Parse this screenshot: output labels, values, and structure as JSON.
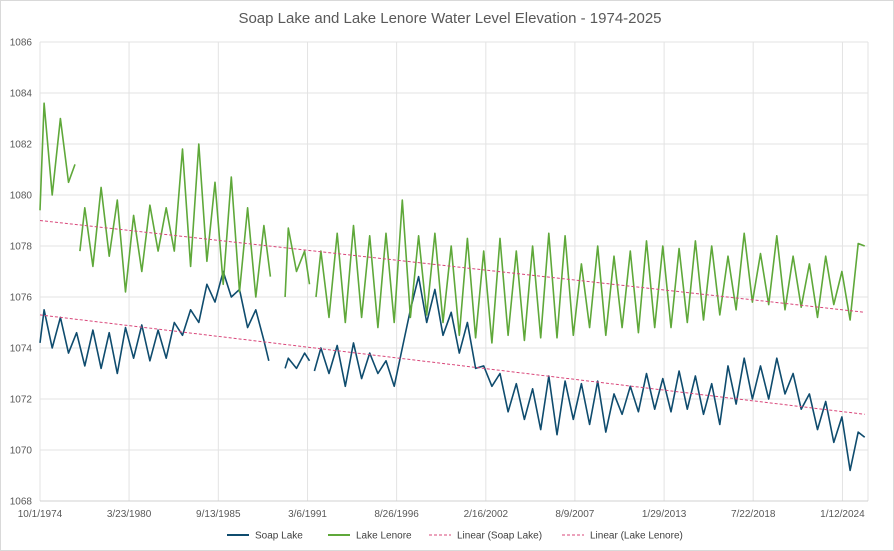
{
  "chart_data": {
    "type": "line",
    "title": "Soap Lake and Lake Lenore Water Level Elevation - 1974-2025",
    "xlabel": "",
    "ylabel": "",
    "ylim": [
      1068,
      1086
    ],
    "y_ticks": [
      "1068",
      "1070",
      "1072",
      "1074",
      "1076",
      "1078",
      "1080",
      "1082",
      "1084",
      "1086"
    ],
    "xlim": [
      1974.75,
      2025.6
    ],
    "x_ticks": [
      {
        "label": "10/1/1974",
        "x": 1974.75
      },
      {
        "label": "3/23/1980",
        "x": 1980.22
      },
      {
        "label": "9/13/1985",
        "x": 1985.7
      },
      {
        "label": "3/6/1991",
        "x": 1991.18
      },
      {
        "label": "8/26/1996",
        "x": 1996.65
      },
      {
        "label": "2/16/2002",
        "x": 2002.13
      },
      {
        "label": "8/9/2007",
        "x": 2007.6
      },
      {
        "label": "1/29/2013",
        "x": 2013.08
      },
      {
        "label": "7/22/2018",
        "x": 2018.55
      },
      {
        "label": "1/12/2024",
        "x": 2024.03
      }
    ],
    "grid": "vertical and horizontal",
    "legend_position": "bottom",
    "series": [
      {
        "name": "Soap Lake",
        "color": "#0f4c6e",
        "style": "solid",
        "x": [
          1974.75,
          1975.0,
          1975.5,
          1976.0,
          1976.5,
          1977.0,
          1977.5,
          1978.0,
          1978.5,
          1979.0,
          1979.5,
          1980.0,
          1980.5,
          1981.0,
          1981.5,
          1982.0,
          1982.5,
          1983.0,
          1983.5,
          1984.0,
          1984.5,
          1985.0,
          1985.5,
          1986.0,
          1986.5,
          1987.0,
          1987.5,
          1988.0,
          1988.5,
          1988.8,
          null,
          1989.8,
          1990.0,
          1990.5,
          1991.0,
          1991.3,
          null,
          1991.6,
          1992.0,
          1992.5,
          1993.0,
          1993.5,
          1994.0,
          1994.5,
          1995.0,
          1995.5,
          1996.0,
          1996.5,
          1997.0,
          1997.5,
          1998.0,
          1998.5,
          1999.0,
          1999.5,
          2000.0,
          2000.5,
          2001.0,
          2001.5,
          2002.0,
          2002.5,
          2003.0,
          2003.5,
          2004.0,
          2004.5,
          2005.0,
          2005.5,
          2006.0,
          2006.5,
          2007.0,
          2007.5,
          2008.0,
          2008.5,
          2009.0,
          2009.5,
          2010.0,
          2010.5,
          2011.0,
          2011.5,
          2012.0,
          2012.5,
          2013.0,
          2013.5,
          2014.0,
          2014.5,
          2015.0,
          2015.5,
          2016.0,
          2016.5,
          2017.0,
          2017.5,
          2018.0,
          2018.5,
          2019.0,
          2019.5,
          2020.0,
          2020.5,
          2021.0,
          2021.5,
          2022.0,
          2022.5,
          2023.0,
          2023.5,
          2024.0,
          2024.5,
          2025.0,
          2025.4
        ],
        "values": [
          1074.2,
          1075.5,
          1074.0,
          1075.2,
          1073.8,
          1074.6,
          1073.3,
          1074.7,
          1073.2,
          1074.6,
          1073.0,
          1074.8,
          1073.6,
          1074.9,
          1073.5,
          1074.7,
          1073.6,
          1075.0,
          1074.5,
          1075.5,
          1075.0,
          1076.5,
          1075.8,
          1077.0,
          1076.0,
          1076.3,
          1074.8,
          1075.5,
          1074.3,
          1073.5,
          null,
          1073.2,
          1073.6,
          1073.2,
          1073.8,
          1073.5,
          null,
          1073.1,
          1074.0,
          1073.0,
          1074.1,
          1072.5,
          1074.2,
          1072.8,
          1073.8,
          1073.0,
          1073.5,
          1072.5,
          1074.0,
          1075.5,
          1076.8,
          1075.0,
          1076.3,
          1074.5,
          1075.4,
          1073.8,
          1075.0,
          1073.2,
          1073.3,
          1072.5,
          1073.0,
          1071.5,
          1072.6,
          1071.2,
          1072.4,
          1070.8,
          1072.9,
          1070.6,
          1072.7,
          1071.2,
          1072.6,
          1071.0,
          1072.7,
          1070.7,
          1072.2,
          1071.4,
          1072.5,
          1071.5,
          1073.0,
          1071.6,
          1072.8,
          1071.5,
          1073.1,
          1071.6,
          1072.9,
          1071.4,
          1072.6,
          1071.0,
          1073.3,
          1071.8,
          1073.6,
          1072.0,
          1073.3,
          1072.0,
          1073.6,
          1072.2,
          1073.0,
          1071.6,
          1072.2,
          1070.8,
          1071.9,
          1070.3,
          1071.3,
          1069.2,
          1070.7,
          1070.5
        ]
      },
      {
        "name": "Lake Lenore",
        "color": "#5fa83a",
        "style": "solid",
        "x": [
          1974.75,
          1975.0,
          1975.5,
          1976.0,
          1976.5,
          1976.9,
          null,
          1977.2,
          1977.5,
          1978.0,
          1978.5,
          1979.0,
          1979.5,
          1980.0,
          1980.5,
          1981.0,
          1981.5,
          1982.0,
          1982.5,
          1983.0,
          1983.5,
          1984.0,
          1984.5,
          1985.0,
          1985.5,
          1986.0,
          1986.5,
          1987.0,
          1987.5,
          1988.0,
          1988.5,
          1988.9,
          null,
          1989.8,
          1990.0,
          1990.5,
          1991.0,
          1991.3,
          null,
          1991.7,
          1992.0,
          1992.5,
          1993.0,
          1993.5,
          1994.0,
          1994.5,
          1995.0,
          1995.5,
          1996.0,
          1996.5,
          1997.0,
          1997.5,
          1998.0,
          1998.5,
          1999.0,
          1999.5,
          2000.0,
          2000.5,
          2001.0,
          2001.5,
          2002.0,
          2002.5,
          2003.0,
          2003.5,
          2004.0,
          2004.5,
          2005.0,
          2005.5,
          2006.0,
          2006.5,
          2007.0,
          2007.5,
          2008.0,
          2008.5,
          2009.0,
          2009.5,
          2010.0,
          2010.5,
          2011.0,
          2011.5,
          2012.0,
          2012.5,
          2013.0,
          2013.5,
          2014.0,
          2014.5,
          2015.0,
          2015.5,
          2016.0,
          2016.5,
          2017.0,
          2017.5,
          2018.0,
          2018.5,
          2019.0,
          2019.5,
          2020.0,
          2020.5,
          2021.0,
          2021.5,
          2022.0,
          2022.5,
          2023.0,
          2023.5,
          2024.0,
          2024.5,
          2025.0,
          2025.4
        ],
        "values": [
          1079.4,
          1083.6,
          1080.0,
          1083.0,
          1080.5,
          1081.2,
          null,
          1077.8,
          1079.5,
          1077.2,
          1080.3,
          1077.6,
          1079.8,
          1076.2,
          1079.2,
          1077.0,
          1079.6,
          1077.8,
          1079.5,
          1077.8,
          1081.8,
          1077.2,
          1082.0,
          1077.4,
          1080.5,
          1076.5,
          1080.7,
          1076.2,
          1079.5,
          1076.0,
          1078.8,
          1076.8,
          null,
          1076.0,
          1078.7,
          1077.0,
          1077.8,
          1076.5,
          null,
          1076.0,
          1077.8,
          1075.2,
          1078.5,
          1075.0,
          1078.8,
          1075.2,
          1078.4,
          1074.8,
          1078.5,
          1075.0,
          1079.8,
          1075.2,
          1078.4,
          1075.3,
          1078.5,
          1075.0,
          1078.0,
          1074.5,
          1078.3,
          1074.4,
          1077.8,
          1074.2,
          1078.3,
          1074.5,
          1077.8,
          1074.3,
          1078.0,
          1074.4,
          1078.5,
          1074.4,
          1078.4,
          1074.5,
          1077.3,
          1074.8,
          1078.0,
          1074.5,
          1077.6,
          1074.8,
          1077.8,
          1074.6,
          1078.2,
          1074.8,
          1078.0,
          1074.8,
          1077.9,
          1075.0,
          1078.2,
          1075.1,
          1078.0,
          1075.3,
          1077.6,
          1075.5,
          1078.5,
          1075.8,
          1077.7,
          1075.7,
          1078.4,
          1075.5,
          1077.6,
          1075.6,
          1077.3,
          1075.2,
          1077.6,
          1075.7,
          1077.0,
          1075.1,
          1078.1,
          1078.0
        ]
      },
      {
        "name": "Linear (Soap Lake)",
        "color": "#d9477a",
        "style": "dashed",
        "x": [
          1974.75,
          2025.4
        ],
        "values": [
          1075.3,
          1071.4
        ]
      },
      {
        "name": "Linear (Lake Lenore)",
        "color": "#d9477a",
        "style": "dashed",
        "x": [
          1974.75,
          2025.4
        ],
        "values": [
          1079.0,
          1075.4
        ]
      }
    ]
  }
}
